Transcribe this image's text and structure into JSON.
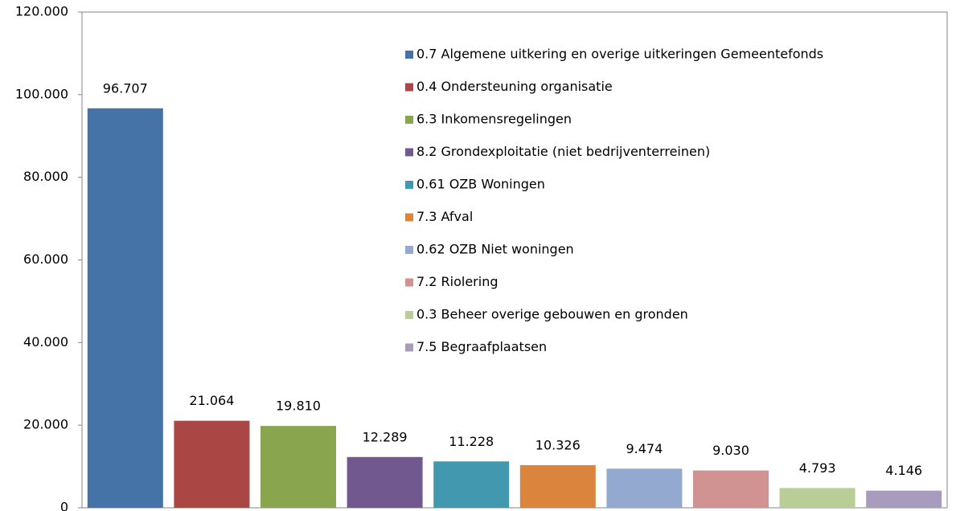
{
  "chart_data": {
    "type": "bar",
    "series": [
      {
        "name": "0.7 Algemene uitkering en overige uitkeringen Gemeentefonds",
        "color": "#4572A7",
        "values": [
          96707
        ],
        "value_labels": [
          "96.707"
        ]
      },
      {
        "name": "0.4 Ondersteuning organisatie",
        "color": "#AA4643",
        "values": [
          21064
        ],
        "value_labels": [
          "21.064"
        ]
      },
      {
        "name": "6.3 Inkomensregelingen",
        "color": "#89A54E",
        "values": [
          19810
        ],
        "value_labels": [
          "19.810"
        ]
      },
      {
        "name": "8.2 Grondexploitatie (niet bedrijventerreinen)",
        "color": "#71588F",
        "values": [
          12289
        ],
        "value_labels": [
          "12.289"
        ]
      },
      {
        "name": "0.61 OZB Woningen",
        "color": "#4198AF",
        "values": [
          11228
        ],
        "value_labels": [
          "11.228"
        ]
      },
      {
        "name": "7.3 Afval",
        "color": "#DB843D",
        "values": [
          10326
        ],
        "value_labels": [
          "10.326"
        ]
      },
      {
        "name": "0.62 OZB Niet woningen",
        "color": "#93A9CF",
        "values": [
          9474
        ],
        "value_labels": [
          "9.474"
        ]
      },
      {
        "name": "7.2 Riolering",
        "color": "#D19392",
        "values": [
          9030
        ],
        "value_labels": [
          "9.030"
        ]
      },
      {
        "name": "0.3 Beheer overige gebouwen en gronden",
        "color": "#B9CD96",
        "values": [
          4793
        ],
        "value_labels": [
          "4.793"
        ]
      },
      {
        "name": "7.5 Begraafplaatsen",
        "color": "#A99BBD",
        "values": [
          4146
        ],
        "value_labels": [
          "4.146"
        ]
      }
    ],
    "ylim": [
      0,
      120000
    ],
    "yticks": [
      0,
      {
        "value": 20000,
        "label": "20.000"
      },
      {
        "value": 40000,
        "label": "40.000"
      },
      {
        "value": 60000,
        "label": "60.000"
      },
      {
        "value": 80000,
        "label": "80.000"
      },
      {
        "value": 100000,
        "label": "100.000"
      },
      {
        "value": 120000,
        "label": "120.000"
      }
    ],
    "legend": "upper right"
  }
}
